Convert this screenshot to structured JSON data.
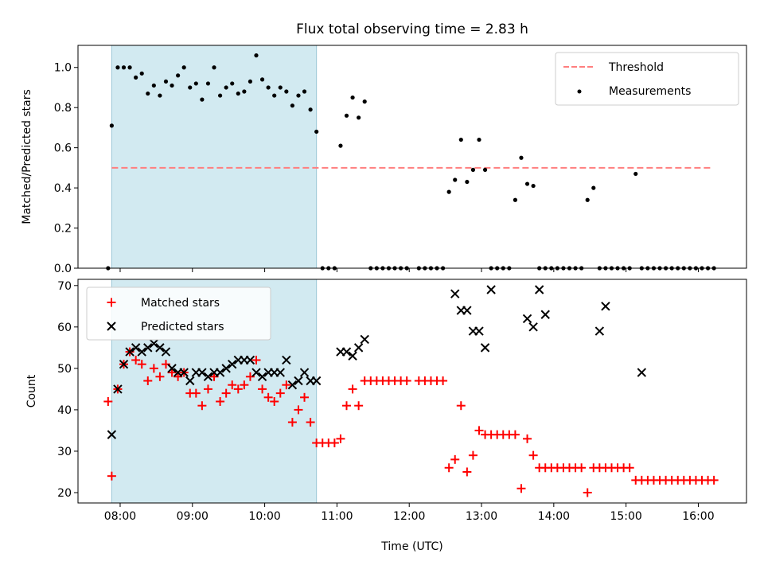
{
  "chart_data": [
    {
      "type": "scatter",
      "title": "Flux total observing time = 2.83 h",
      "xlabel": "",
      "ylabel": "Matched/Predicted stars",
      "ylim": [
        0,
        1.11
      ],
      "yticks": [
        "0.0",
        "0.2",
        "0.4",
        "0.6",
        "0.8",
        "1.0"
      ],
      "xticks": [
        "08:00",
        "09:00",
        "10:00",
        "11:00",
        "12:00",
        "13:00",
        "14:00",
        "15:00",
        "16:00"
      ],
      "legend": {
        "position": "top-right",
        "entries": [
          "Threshold",
          "Measurements"
        ]
      },
      "highlight_span": [
        "07:53",
        "10:43"
      ],
      "series": [
        {
          "name": "Threshold",
          "kind": "dashed-line",
          "color": "#ff7f7f",
          "x": [
            "07:53",
            "16:12"
          ],
          "y": [
            0.5,
            0.5
          ]
        },
        {
          "name": "Measurements",
          "kind": "points",
          "color": "#000000",
          "x": [
            "07:50",
            "07:53",
            "07:58",
            "08:03",
            "08:08",
            "08:13",
            "08:18",
            "08:23",
            "08:28",
            "08:33",
            "08:38",
            "08:43",
            "08:48",
            "08:53",
            "08:58",
            "09:03",
            "09:08",
            "09:13",
            "09:18",
            "09:23",
            "09:28",
            "09:33",
            "09:38",
            "09:43",
            "09:48",
            "09:53",
            "09:58",
            "10:03",
            "10:08",
            "10:13",
            "10:18",
            "10:23",
            "10:28",
            "10:33",
            "10:38",
            "10:43",
            "10:48",
            "10:53",
            "10:58",
            "11:03",
            "11:08",
            "11:13",
            "11:18",
            "11:23",
            "11:28",
            "11:33",
            "11:38",
            "11:43",
            "11:48",
            "11:53",
            "11:58",
            "12:08",
            "12:13",
            "12:18",
            "12:23",
            "12:28",
            "12:33",
            "12:38",
            "12:43",
            "12:48",
            "12:53",
            "12:58",
            "13:03",
            "13:08",
            "13:13",
            "13:18",
            "13:23",
            "13:28",
            "13:33",
            "13:38",
            "13:43",
            "13:48",
            "13:53",
            "13:58",
            "14:03",
            "14:08",
            "14:13",
            "14:18",
            "14:23",
            "14:28",
            "14:33",
            "14:38",
            "14:43",
            "14:48",
            "14:53",
            "14:58",
            "15:03",
            "15:08",
            "15:13",
            "15:18",
            "15:23",
            "15:28",
            "15:33",
            "15:38",
            "15:43",
            "15:48",
            "15:53",
            "15:58",
            "16:03",
            "16:08",
            "16:13"
          ],
          "y": [
            0.0,
            0.71,
            1.0,
            1.0,
            1.0,
            0.95,
            0.97,
            0.87,
            0.91,
            0.86,
            0.93,
            0.91,
            0.96,
            1.0,
            0.9,
            0.92,
            0.84,
            0.92,
            1.0,
            0.86,
            0.9,
            0.92,
            0.87,
            0.88,
            0.93,
            1.06,
            0.94,
            0.9,
            0.86,
            0.9,
            0.88,
            0.81,
            0.86,
            0.88,
            0.79,
            0.68,
            0.0,
            0.0,
            0.0,
            0.61,
            0.76,
            0.85,
            0.75,
            0.83,
            0.0,
            0.0,
            0.0,
            0.0,
            0.0,
            0.0,
            0.0,
            0.0,
            0.0,
            0.0,
            0.0,
            0.0,
            0.38,
            0.44,
            0.64,
            0.43,
            0.49,
            0.64,
            0.49,
            0.0,
            0.0,
            0.0,
            0.0,
            0.34,
            0.55,
            0.42,
            0.41,
            0.0,
            0.0,
            0.0,
            0.0,
            0.0,
            0.0,
            0.0,
            0.0,
            0.34,
            0.4,
            0.0,
            0.0,
            0.0,
            0.0,
            0.0,
            0.0,
            0.47,
            0.0,
            0.0,
            0.0,
            0.0,
            0.0,
            0.0,
            0.0,
            0.0,
            0.0,
            0.0,
            0.0,
            0.0,
            0.0
          ]
        }
      ]
    },
    {
      "type": "scatter",
      "title": "",
      "xlabel": "Time (UTC)",
      "ylabel": "Count",
      "ylim": [
        17.5,
        71.5
      ],
      "yticks": [
        "20",
        "30",
        "40",
        "50",
        "60",
        "70"
      ],
      "xticks": [
        "08:00",
        "09:00",
        "10:00",
        "11:00",
        "12:00",
        "13:00",
        "14:00",
        "15:00",
        "16:00"
      ],
      "legend": {
        "position": "top-left",
        "entries": [
          "Matched stars",
          "Predicted stars"
        ]
      },
      "highlight_span": [
        "07:53",
        "10:43"
      ],
      "series": [
        {
          "name": "Matched stars",
          "marker": "+",
          "color": "#ff0000",
          "x": [
            "07:50",
            "07:53",
            "07:58",
            "08:03",
            "08:08",
            "08:13",
            "08:18",
            "08:23",
            "08:28",
            "08:33",
            "08:38",
            "08:43",
            "08:48",
            "08:53",
            "08:58",
            "09:03",
            "09:08",
            "09:13",
            "09:18",
            "09:23",
            "09:28",
            "09:33",
            "09:38",
            "09:43",
            "09:48",
            "09:53",
            "09:58",
            "10:03",
            "10:08",
            "10:13",
            "10:18",
            "10:23",
            "10:28",
            "10:33",
            "10:38",
            "10:43",
            "10:48",
            "10:53",
            "10:58",
            "11:03",
            "11:08",
            "11:13",
            "11:18",
            "11:23",
            "11:28",
            "11:33",
            "11:38",
            "11:43",
            "11:48",
            "11:53",
            "11:58",
            "12:08",
            "12:13",
            "12:18",
            "12:23",
            "12:28",
            "12:33",
            "12:38",
            "12:43",
            "12:48",
            "12:53",
            "12:58",
            "13:03",
            "13:08",
            "13:13",
            "13:18",
            "13:23",
            "13:28",
            "13:33",
            "13:38",
            "13:43",
            "13:48",
            "13:53",
            "13:58",
            "14:03",
            "14:08",
            "14:13",
            "14:18",
            "14:23",
            "14:28",
            "14:33",
            "14:38",
            "14:43",
            "14:48",
            "14:53",
            "14:58",
            "15:03",
            "15:08",
            "15:13",
            "15:18",
            "15:23",
            "15:28",
            "15:33",
            "15:38",
            "15:43",
            "15:48",
            "15:53",
            "15:58",
            "16:03",
            "16:08",
            "16:13"
          ],
          "y": [
            42,
            24,
            45,
            51,
            54,
            52,
            51,
            47,
            50,
            48,
            51,
            49,
            48,
            49,
            44,
            44,
            41,
            45,
            48,
            42,
            44,
            46,
            45,
            46,
            48,
            52,
            45,
            43,
            42,
            44,
            46,
            37,
            40,
            43,
            37,
            32,
            32,
            32,
            32,
            33,
            41,
            45,
            41,
            47,
            47,
            47,
            47,
            47,
            47,
            47,
            47,
            47,
            47,
            47,
            47,
            47,
            26,
            28,
            41,
            25,
            29,
            35,
            34,
            34,
            34,
            34,
            34,
            34,
            21,
            33,
            29,
            26,
            26,
            26,
            26,
            26,
            26,
            26,
            26,
            20,
            26,
            26,
            26,
            26,
            26,
            26,
            26,
            23,
            23,
            23,
            23,
            23,
            23,
            23,
            23,
            23,
            23,
            23,
            23,
            23,
            23
          ]
        },
        {
          "name": "Predicted stars",
          "marker": "x",
          "color": "#000000",
          "x": [
            "07:53",
            "07:58",
            "08:03",
            "08:08",
            "08:13",
            "08:18",
            "08:23",
            "08:28",
            "08:33",
            "08:38",
            "08:43",
            "08:48",
            "08:53",
            "08:58",
            "09:03",
            "09:08",
            "09:13",
            "09:18",
            "09:23",
            "09:28",
            "09:33",
            "09:38",
            "09:43",
            "09:48",
            "09:53",
            "09:58",
            "10:03",
            "10:08",
            "10:13",
            "10:18",
            "10:23",
            "10:28",
            "10:33",
            "10:38",
            "10:43",
            "11:03",
            "11:08",
            "11:13",
            "11:18",
            "11:23",
            "12:38",
            "12:43",
            "12:48",
            "12:53",
            "12:58",
            "13:03",
            "13:08",
            "13:38",
            "13:43",
            "13:48",
            "13:53",
            "14:38",
            "14:43",
            "15:13"
          ],
          "y": [
            34,
            45,
            51,
            54,
            55,
            54,
            55,
            56,
            55,
            54,
            50,
            49,
            49,
            47,
            49,
            49,
            48,
            49,
            49,
            50,
            51,
            52,
            52,
            52,
            49,
            48,
            49,
            49,
            49,
            52,
            46,
            47,
            49,
            47,
            47,
            54,
            54,
            53,
            55,
            57,
            68,
            64,
            64,
            59,
            59,
            55,
            69,
            62,
            60,
            69,
            63,
            59,
            65,
            49
          ]
        }
      ]
    }
  ]
}
